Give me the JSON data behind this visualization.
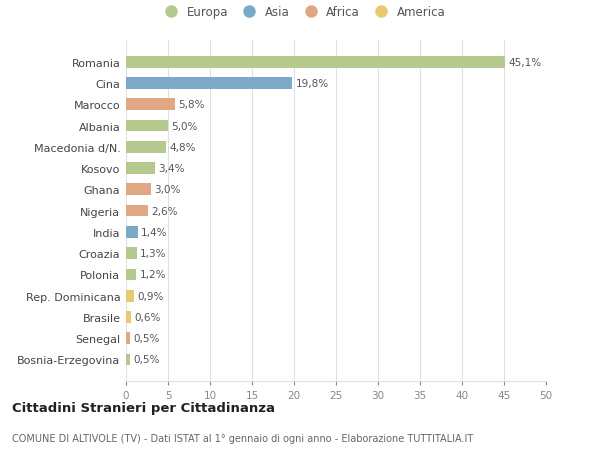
{
  "categories": [
    "Romania",
    "Cina",
    "Marocco",
    "Albania",
    "Macedonia d/N.",
    "Kosovo",
    "Ghana",
    "Nigeria",
    "India",
    "Croazia",
    "Polonia",
    "Rep. Dominicana",
    "Brasile",
    "Senegal",
    "Bosnia-Erzegovina"
  ],
  "values": [
    45.1,
    19.8,
    5.8,
    5.0,
    4.8,
    3.4,
    3.0,
    2.6,
    1.4,
    1.3,
    1.2,
    0.9,
    0.6,
    0.5,
    0.5
  ],
  "labels": [
    "45,1%",
    "19,8%",
    "5,8%",
    "5,0%",
    "4,8%",
    "3,4%",
    "3,0%",
    "2,6%",
    "1,4%",
    "1,3%",
    "1,2%",
    "0,9%",
    "0,6%",
    "0,5%",
    "0,5%"
  ],
  "continents": [
    "Europa",
    "Asia",
    "Africa",
    "Europa",
    "Europa",
    "Europa",
    "Africa",
    "Africa",
    "Asia",
    "Europa",
    "Europa",
    "America",
    "America",
    "Africa",
    "Europa"
  ],
  "colors": {
    "Europa": "#b5c98e",
    "Asia": "#7aaac8",
    "Africa": "#e0a882",
    "America": "#e8ca6e"
  },
  "legend_items": [
    "Europa",
    "Asia",
    "Africa",
    "America"
  ],
  "title": "Cittadini Stranieri per Cittadinanza",
  "subtitle": "COMUNE DI ALTIVOLE (TV) - Dati ISTAT al 1° gennaio di ogni anno - Elaborazione TUTTITALIA.IT",
  "xlim": [
    0,
    50
  ],
  "xticks": [
    0,
    5,
    10,
    15,
    20,
    25,
    30,
    35,
    40,
    45,
    50
  ],
  "background_color": "#ffffff",
  "grid_color": "#e0e0e0"
}
